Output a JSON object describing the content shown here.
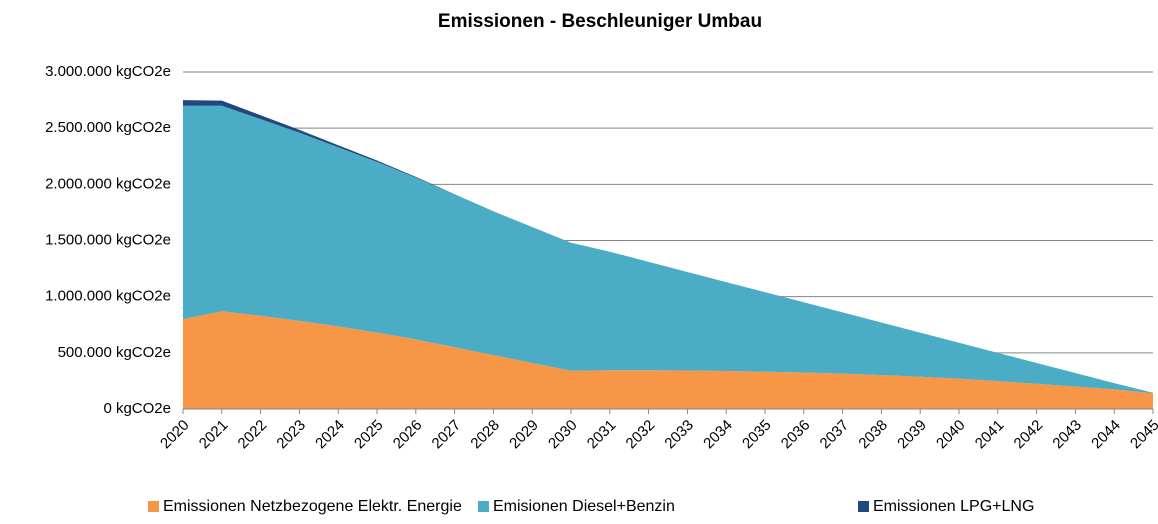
{
  "chart_data": {
    "type": "stacked_area",
    "title": "Emissionen - Beschleuniger Umbau",
    "categories": [
      "2020",
      "2021",
      "2022",
      "2023",
      "2024",
      "2025",
      "2026",
      "2027",
      "2028",
      "2029",
      "2030",
      "2031",
      "2032",
      "2033",
      "2034",
      "2035",
      "2036",
      "2037",
      "2038",
      "2039",
      "2040",
      "2041",
      "2042",
      "2043",
      "2044",
      "2045"
    ],
    "series": [
      {
        "name": "Emissionen Netzbezogene Elektr. Energie",
        "color": "#f79646",
        "values": [
          800000,
          870000,
          830000,
          785000,
          735000,
          680000,
          620000,
          550000,
          480000,
          410000,
          340000,
          345000,
          345000,
          343000,
          338000,
          332000,
          325000,
          315000,
          302000,
          287000,
          270000,
          248000,
          225000,
          200000,
          175000,
          140000
        ]
      },
      {
        "name": "Emisionen Diesel+Benzin",
        "color": "#4bacc6",
        "values": [
          1900000,
          1830000,
          1750000,
          1675000,
          1595000,
          1520000,
          1440000,
          1360000,
          1280000,
          1210000,
          1140000,
          1055000,
          965000,
          877000,
          792000,
          708000,
          625000,
          545000,
          468000,
          393000,
          320000,
          252000,
          185000,
          120000,
          55000,
          5000
        ]
      },
      {
        "name": "Emissionen LPG+LNG",
        "color": "#1f497d",
        "values": [
          50000,
          45000,
          35000,
          25000,
          18000,
          12000,
          6000,
          2000,
          0,
          0,
          0,
          0,
          0,
          0,
          0,
          0,
          0,
          0,
          0,
          0,
          0,
          0,
          0,
          0,
          0,
          0
        ]
      }
    ],
    "ylim": [
      0,
      3000000
    ],
    "yticks": [
      {
        "value": 0,
        "label": "0 kgCO2e"
      },
      {
        "value": 500000,
        "label": "500.000 kgCO2e"
      },
      {
        "value": 1000000,
        "label": "1.000.000 kgCO2e"
      },
      {
        "value": 1500000,
        "label": "1.500.000 kgCO2e"
      },
      {
        "value": 2000000,
        "label": "2.000.000 kgCO2e"
      },
      {
        "value": 2500000,
        "label": "2.500.000 kgCO2e"
      },
      {
        "value": 3000000,
        "label": "3.000.000 kgCO2e"
      }
    ],
    "grid": true,
    "legend": "bottom"
  }
}
